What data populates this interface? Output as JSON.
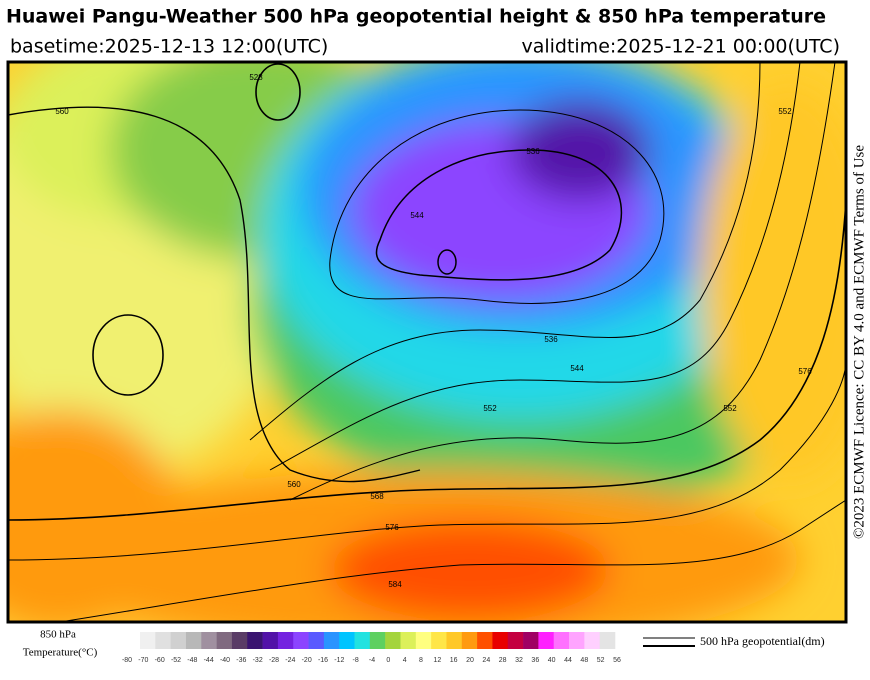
{
  "header": {
    "title": "Huawei Pangu-Weather 500 hPa geopotential height & 850 hPa temperature",
    "basetime": "basetime:2025-12-13 12:00(UTC)",
    "validtime": "validtime:2025-12-21 00:00(UTC)"
  },
  "license": "©2023 ECMWF Licence: CC BY 4.0 and ECMWF Terms of Use",
  "contour_labels": [
    "560",
    "528",
    "552",
    "544",
    "536",
    "552",
    "568",
    "576",
    "584",
    "560",
    "536",
    "544",
    "552",
    "576"
  ],
  "colorbar": {
    "title_line1": "850 hPa",
    "title_line2": "Temperature(°C)",
    "ticks": [
      -80,
      -70,
      -60,
      -52,
      -48,
      -44,
      -40,
      -36,
      -32,
      -28,
      -24,
      -20,
      -16,
      -12,
      -8,
      -4,
      0,
      4,
      8,
      12,
      16,
      20,
      24,
      28,
      32,
      36,
      40,
      44,
      48,
      52,
      56
    ],
    "colors": [
      "#f0f0f0",
      "#e0e0e0",
      "#d0d0d0",
      "#b8b8b8",
      "#a090a0",
      "#806a80",
      "#5a3c66",
      "#3a1470",
      "#5212a8",
      "#7422e0",
      "#8c44ff",
      "#5a5aff",
      "#2a94ff",
      "#00c4ff",
      "#22e2e0",
      "#5ed060",
      "#a4d43c",
      "#dcf05a",
      "#ffff80",
      "#ffe648",
      "#ffc828",
      "#ff9a10",
      "#ff5000",
      "#e80000",
      "#c40040",
      "#a00064",
      "#ff20ff",
      "#ff70ff",
      "#ffa4ff",
      "#ffd0ff",
      "#e4e4e4"
    ]
  },
  "legend": {
    "label": "500 hPa geopotential(dm)"
  }
}
